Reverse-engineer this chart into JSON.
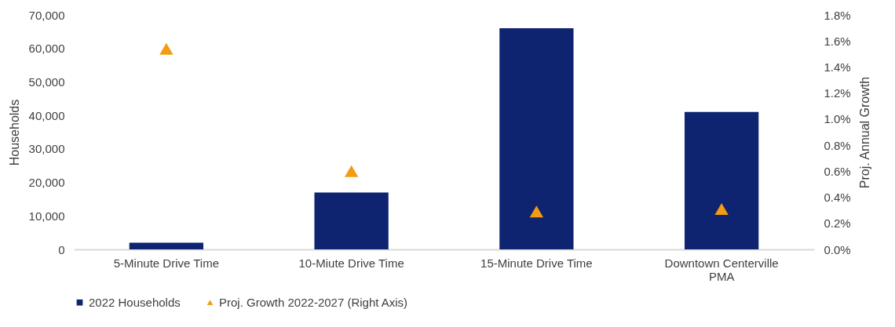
{
  "chart_data": {
    "type": "bar",
    "ylabel": "Households",
    "y2label": "Proj. Annual Growth",
    "categories": [
      "5-Minute Drive Time",
      "10-Miute Drive Time",
      "15-Minute Drive Time",
      "Downtown Centerville PMA"
    ],
    "series": [
      {
        "name": "2022 Households",
        "color": "#0e2470",
        "values": [
          2000,
          17000,
          66000,
          41000
        ]
      },
      {
        "name": "Proj. Growth 2022-2027 (Right Axis)",
        "type": "scatter",
        "axis": "y2",
        "marker": "triangle",
        "color": "#f39c12",
        "values": [
          1.54,
          0.6,
          0.29,
          0.31
        ]
      }
    ],
    "ylim": [
      0,
      70000
    ],
    "yticks": [
      0,
      {
        "value": 10000,
        "label": "10,000"
      },
      {
        "value": 20000,
        "label": "20,000"
      },
      {
        "value": 30000,
        "label": "30,000"
      },
      {
        "value": 40000,
        "label": "40,000"
      },
      {
        "value": 50000,
        "label": "50,000"
      },
      {
        "value": 60000,
        "label": "60,000"
      },
      {
        "value": 70000,
        "label": "70,000"
      }
    ],
    "y2lim": [
      0,
      1.8
    ],
    "y2ticks": [
      {
        "value": 0,
        "label": "0.0%"
      },
      {
        "value": 0.2,
        "label": "0.2%"
      },
      {
        "value": 0.4,
        "label": "0.4%"
      },
      {
        "value": 0.6,
        "label": "0.6%"
      },
      {
        "value": 0.8,
        "label": "0.8%"
      },
      {
        "value": 1.0,
        "label": "1.0%"
      },
      {
        "value": 1.2,
        "label": "1.2%"
      },
      {
        "value": 1.4,
        "label": "1.4%"
      },
      {
        "value": 1.6,
        "label": "1.6%"
      },
      {
        "value": 1.8,
        "label": "1.8%"
      }
    ],
    "grid": false,
    "legend": "bottom"
  }
}
